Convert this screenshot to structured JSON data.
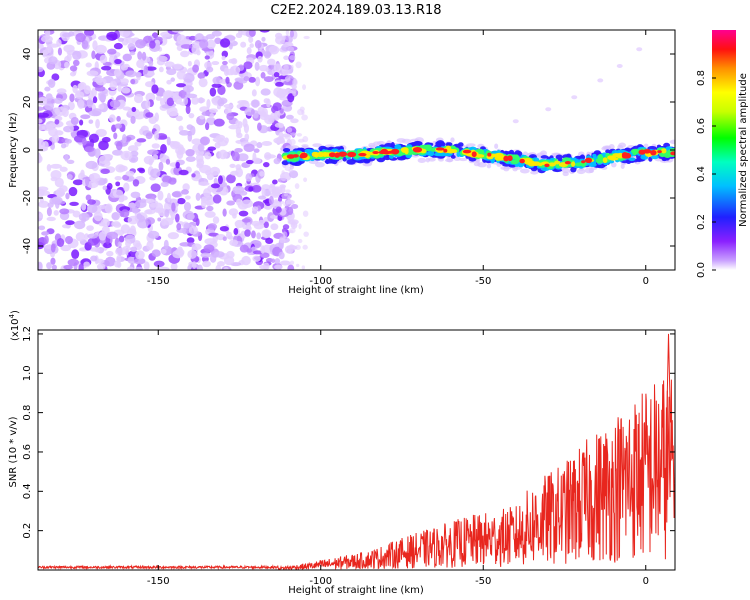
{
  "page": {
    "title": "C2E2.2024.189.03.13.R18"
  },
  "chart_data": [
    {
      "type": "heatmap",
      "xlabel": "Height of straight line (km)",
      "ylabel": "Frequency (Hz)",
      "xlim": [
        -187,
        9
      ],
      "ylim": [
        -50,
        50
      ],
      "xticks": [
        -150,
        -100,
        -50,
        0
      ],
      "yticks": [
        -40,
        -20,
        0,
        20,
        40
      ],
      "colorbar": {
        "label": "Normalized spectral amplitude",
        "range": [
          0,
          1
        ],
        "ticks": [
          "0.0",
          "0.2",
          "0.4",
          "0.6",
          "0.8"
        ],
        "colors": [
          "#ffffff",
          "#9b30ff",
          "#2020ff",
          "#00ffff",
          "#00ff00",
          "#ffff00",
          "#ff8000",
          "#ff0000",
          "#ff00a0"
        ]
      },
      "noise_region_x": [
        -187,
        -112
      ],
      "signal_band": {
        "x": [
          -111,
          -100,
          -90,
          -80,
          -70,
          -60,
          -50,
          -40,
          -30,
          -20,
          -10,
          0,
          9
        ],
        "freq": [
          -3,
          -2,
          -2,
          -1,
          0,
          0,
          -2,
          -4,
          -6,
          -5,
          -3,
          -1,
          -1
        ]
      }
    },
    {
      "type": "line",
      "xlabel": "Height of straight line (km)",
      "ylabel": "SNR (10 * v/v)",
      "yscale_label": "(x10",
      "yscale_exp": "4",
      "yscale_close": ")",
      "xlim": [
        -187,
        9
      ],
      "ylim": [
        0,
        1.22
      ],
      "xticks": [
        -150,
        -100,
        -50,
        0
      ],
      "yticks": [
        "0.2",
        "0.4",
        "0.6",
        "0.8",
        "1.0",
        "1.2"
      ],
      "line_color": "#e8261e",
      "series": [
        {
          "x": [
            -187,
            -160,
            -130,
            -115,
            -105,
            -95,
            -85,
            -75,
            -65,
            -55,
            -45,
            -40,
            -35,
            -30,
            -25,
            -20,
            -15,
            -10,
            -5,
            0,
            5,
            9
          ],
          "y": [
            0.01,
            0.01,
            0.01,
            0.01,
            0.03,
            0.06,
            0.09,
            0.15,
            0.2,
            0.25,
            0.28,
            0.3,
            0.4,
            0.45,
            0.5,
            0.58,
            0.65,
            0.72,
            0.8,
            0.85,
            0.92,
            0.88
          ]
        }
      ]
    }
  ]
}
